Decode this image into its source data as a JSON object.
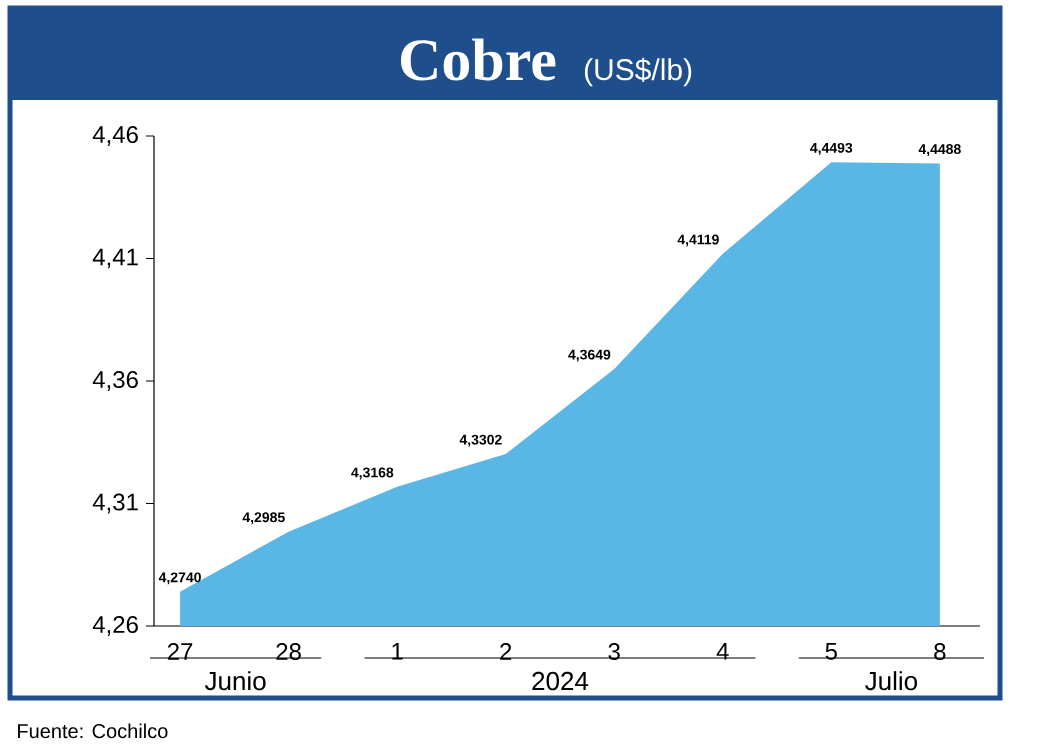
{
  "chart_data": {
    "type": "area",
    "title": "Cobre",
    "subtitle": "(US$/lb)",
    "color": "#5ab6e4",
    "categories": [
      "27",
      "28",
      "1",
      "2",
      "3",
      "4",
      "5",
      "8"
    ],
    "values": [
      4.274,
      4.2985,
      4.3168,
      4.3302,
      4.3649,
      4.4119,
      4.4493,
      4.4488
    ],
    "value_labels": [
      "4,2740",
      "4,2985",
      "4,3168",
      "4,3302",
      "4,3649",
      "4,4119",
      "4,4493",
      "4,4488"
    ],
    "ylim": [
      4.26,
      4.46
    ],
    "yticks": [
      {
        "value": 4.26,
        "label": "4,26"
      },
      {
        "value": 4.31,
        "label": "4,31"
      },
      {
        "value": 4.36,
        "label": "4,36"
      },
      {
        "value": 4.41,
        "label": "4,41"
      },
      {
        "value": 4.46,
        "label": "4,46"
      }
    ],
    "annotations": [
      "Junio",
      "2024",
      "Julio",
      "Fuente: Cochilco"
    ]
  }
}
